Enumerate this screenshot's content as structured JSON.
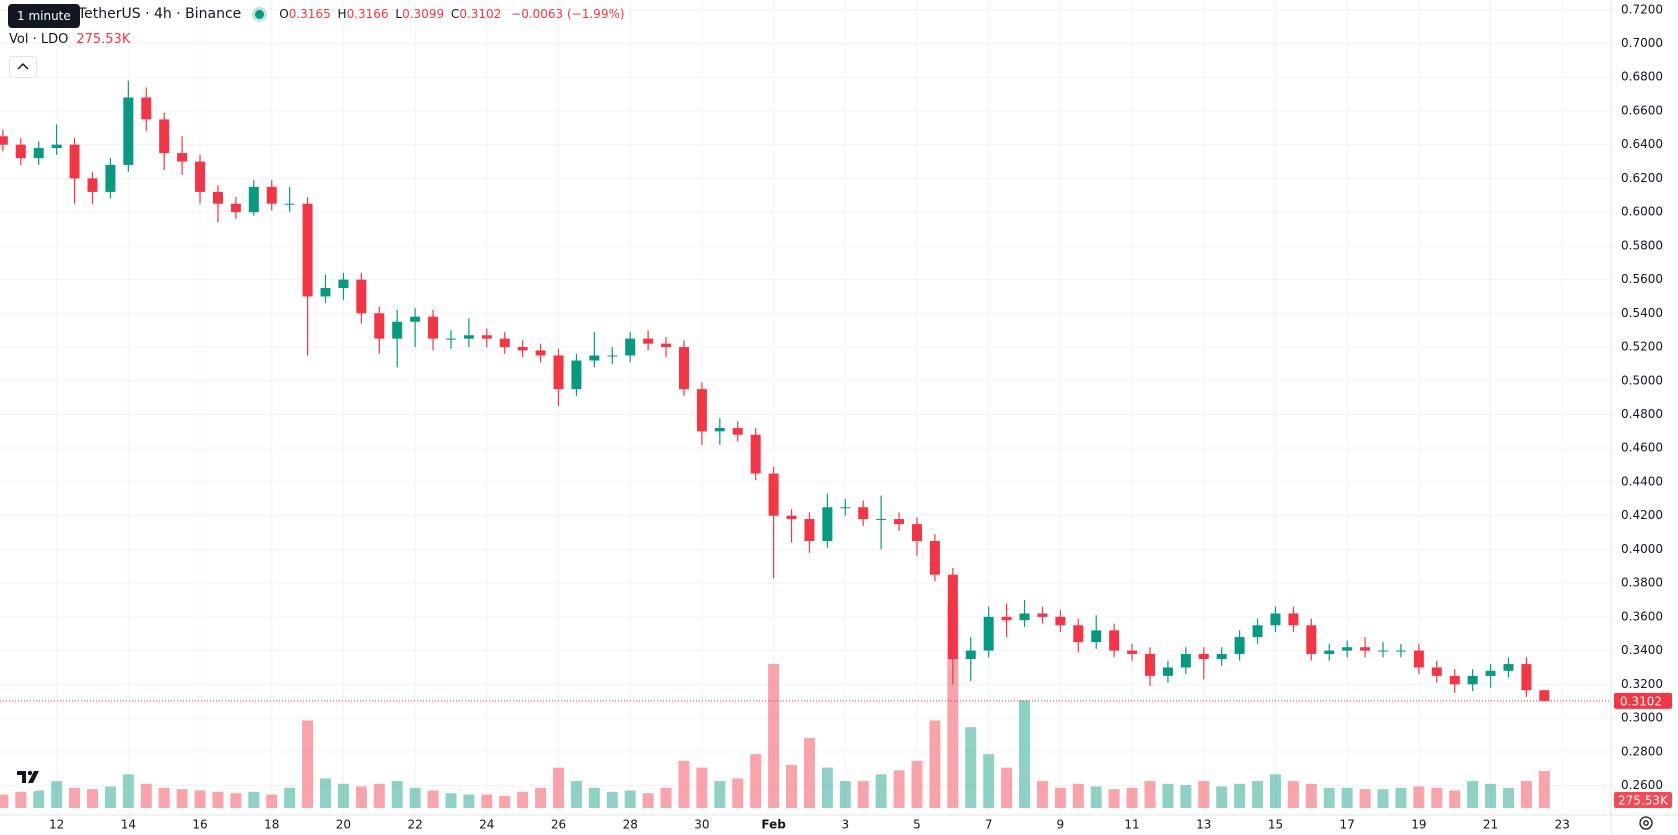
{
  "chart_data": {
    "type": "candlestick",
    "symbol": "TetherUS · 4h · Binance",
    "interval_tooltip": "1 minute",
    "ohlc_labels": [
      "O",
      "H",
      "L",
      "C"
    ],
    "change": "−0.0063 (−1.99%)",
    "volume_title": "Vol · LDO",
    "volume_label": "275.53K",
    "up_color": "#089981",
    "down_color": "#f23645",
    "grid": true,
    "x": [
      -1.5,
      -1,
      -0.5,
      0,
      0.5,
      1,
      1.5,
      2,
      2.5,
      3,
      3.5,
      4,
      4.5,
      5,
      5.5,
      6,
      6.5,
      7,
      7.5,
      8,
      8.5,
      9,
      9.5,
      10,
      10.5,
      11,
      11.5,
      12,
      12.5,
      13,
      13.5,
      14,
      14.5,
      15,
      15.5,
      16,
      16.5,
      17,
      17.5,
      18,
      18.5,
      19,
      19.5,
      20,
      20.5,
      21,
      21.5,
      22,
      22.5,
      23,
      23.5,
      24,
      24.5,
      25,
      25.5,
      26,
      26.5,
      27,
      27.5,
      28,
      28.5,
      29,
      29.5,
      30,
      30.5,
      31,
      31.5,
      32,
      32.5,
      33,
      33.5,
      34,
      34.5,
      35,
      35.5,
      36,
      36.5,
      37,
      37.5,
      38,
      38.5,
      39,
      39.5,
      40,
      40.5,
      41,
      41.5
    ],
    "open": [
      0.645,
      0.64,
      0.632,
      0.638,
      0.64,
      0.62,
      0.612,
      0.628,
      0.668,
      0.655,
      0.635,
      0.63,
      0.612,
      0.605,
      0.6,
      0.615,
      0.605,
      0.605,
      0.55,
      0.555,
      0.56,
      0.54,
      0.525,
      0.535,
      0.538,
      0.525,
      0.525,
      0.527,
      0.525,
      0.52,
      0.518,
      0.515,
      0.495,
      0.512,
      0.515,
      0.515,
      0.525,
      0.522,
      0.52,
      0.495,
      0.47,
      0.472,
      0.468,
      0.445,
      0.42,
      0.418,
      0.405,
      0.425,
      0.425,
      0.418,
      0.418,
      0.415,
      0.405,
      0.385,
      0.335,
      0.34,
      0.36,
      0.358,
      0.362,
      0.36,
      0.355,
      0.345,
      0.352,
      0.34,
      0.338,
      0.325,
      0.33,
      0.338,
      0.335,
      0.338,
      0.348,
      0.355,
      0.362,
      0.355,
      0.338,
      0.34,
      0.342,
      0.34,
      0.34,
      0.34,
      0.33,
      0.325,
      0.32,
      0.325,
      0.328,
      0.332,
      0.3165
    ],
    "high": [
      0.649,
      0.644,
      0.642,
      0.652,
      0.644,
      0.624,
      0.632,
      0.678,
      0.674,
      0.659,
      0.645,
      0.634,
      0.616,
      0.609,
      0.619,
      0.619,
      0.615,
      0.609,
      0.563,
      0.564,
      0.564,
      0.544,
      0.542,
      0.543,
      0.542,
      0.53,
      0.537,
      0.531,
      0.529,
      0.524,
      0.522,
      0.519,
      0.516,
      0.529,
      0.52,
      0.529,
      0.53,
      0.526,
      0.524,
      0.499,
      0.478,
      0.476,
      0.472,
      0.449,
      0.424,
      0.422,
      0.433,
      0.43,
      0.429,
      0.432,
      0.422,
      0.419,
      0.409,
      0.389,
      0.348,
      0.366,
      0.368,
      0.37,
      0.366,
      0.364,
      0.359,
      0.361,
      0.356,
      0.344,
      0.342,
      0.334,
      0.342,
      0.342,
      0.342,
      0.352,
      0.359,
      0.366,
      0.366,
      0.359,
      0.344,
      0.346,
      0.348,
      0.345,
      0.344,
      0.344,
      0.334,
      0.329,
      0.329,
      0.332,
      0.336,
      0.336,
      0.3166
    ],
    "low": [
      0.636,
      0.628,
      0.628,
      0.634,
      0.605,
      0.605,
      0.608,
      0.624,
      0.648,
      0.625,
      0.622,
      0.605,
      0.594,
      0.596,
      0.598,
      0.601,
      0.6,
      0.515,
      0.546,
      0.548,
      0.534,
      0.516,
      0.508,
      0.52,
      0.518,
      0.519,
      0.52,
      0.52,
      0.516,
      0.514,
      0.511,
      0.485,
      0.491,
      0.508,
      0.51,
      0.511,
      0.518,
      0.514,
      0.491,
      0.462,
      0.462,
      0.464,
      0.441,
      0.383,
      0.404,
      0.398,
      0.401,
      0.42,
      0.414,
      0.4,
      0.411,
      0.396,
      0.381,
      0.32,
      0.322,
      0.336,
      0.348,
      0.354,
      0.356,
      0.351,
      0.339,
      0.341,
      0.336,
      0.334,
      0.319,
      0.321,
      0.326,
      0.323,
      0.331,
      0.334,
      0.344,
      0.351,
      0.351,
      0.334,
      0.334,
      0.336,
      0.336,
      0.336,
      0.336,
      0.326,
      0.321,
      0.315,
      0.316,
      0.318,
      0.324,
      0.3125,
      0.3099
    ],
    "close": [
      0.64,
      0.632,
      0.638,
      0.64,
      0.62,
      0.612,
      0.628,
      0.668,
      0.655,
      0.635,
      0.63,
      0.612,
      0.605,
      0.6,
      0.615,
      0.605,
      0.605,
      0.55,
      0.555,
      0.56,
      0.54,
      0.525,
      0.535,
      0.538,
      0.525,
      0.525,
      0.527,
      0.525,
      0.52,
      0.518,
      0.515,
      0.495,
      0.512,
      0.515,
      0.515,
      0.525,
      0.522,
      0.52,
      0.495,
      0.47,
      0.472,
      0.468,
      0.445,
      0.42,
      0.418,
      0.405,
      0.425,
      0.425,
      0.418,
      0.418,
      0.415,
      0.405,
      0.385,
      0.335,
      0.34,
      0.36,
      0.358,
      0.362,
      0.36,
      0.355,
      0.345,
      0.352,
      0.34,
      0.338,
      0.325,
      0.33,
      0.338,
      0.335,
      0.338,
      0.348,
      0.355,
      0.362,
      0.355,
      0.338,
      0.34,
      0.342,
      0.34,
      0.34,
      0.34,
      0.33,
      0.325,
      0.32,
      0.325,
      0.328,
      0.332,
      0.3165,
      0.3102
    ],
    "volume": [
      100,
      120,
      130,
      200,
      150,
      140,
      160,
      250,
      180,
      150,
      140,
      130,
      120,
      110,
      120,
      100,
      150,
      650,
      220,
      180,
      160,
      180,
      200,
      150,
      130,
      110,
      100,
      100,
      90,
      120,
      150,
      300,
      200,
      150,
      120,
      130,
      110,
      150,
      350,
      300,
      200,
      220,
      400,
      1070,
      320,
      520,
      300,
      200,
      200,
      250,
      280,
      350,
      650,
      1500,
      600,
      400,
      300,
      800,
      200,
      150,
      180,
      160,
      140,
      150,
      200,
      180,
      170,
      200,
      160,
      180,
      200,
      250,
      200,
      180,
      150,
      150,
      140,
      140,
      150,
      160,
      150,
      130,
      200,
      180,
      150,
      200,
      275.53
    ],
    "xlim": [
      -1.58,
      43.36
    ],
    "ylim": [
      0.2425,
      0.7258
    ],
    "vlim": [
      0,
      6000
    ],
    "xticks": [
      {
        "value": 0,
        "label": "12"
      },
      {
        "value": 2,
        "label": "14"
      },
      {
        "value": 4,
        "label": "16"
      },
      {
        "value": 6,
        "label": "18"
      },
      {
        "value": 8,
        "label": "20"
      },
      {
        "value": 10,
        "label": "22"
      },
      {
        "value": 12,
        "label": "24"
      },
      {
        "value": 14,
        "label": "26"
      },
      {
        "value": 16,
        "label": "28"
      },
      {
        "value": 18,
        "label": "30"
      },
      {
        "value": 20,
        "label": "Feb"
      },
      {
        "value": 22,
        "label": "3"
      },
      {
        "value": 24,
        "label": "5"
      },
      {
        "value": 26,
        "label": "7"
      },
      {
        "value": 28,
        "label": "9"
      },
      {
        "value": 30,
        "label": "11"
      },
      {
        "value": 32,
        "label": "13"
      },
      {
        "value": 34,
        "label": "15"
      },
      {
        "value": 36,
        "label": "17"
      },
      {
        "value": 38,
        "label": "19"
      },
      {
        "value": 40,
        "label": "21"
      },
      {
        "value": 42,
        "label": "23"
      }
    ],
    "yticks": [
      {
        "value": 0.26,
        "label": "0.2600"
      },
      {
        "value": 0.28,
        "label": "0.2800"
      },
      {
        "value": 0.3,
        "label": "0.3000"
      },
      {
        "value": 0.32,
        "label": "0.3200"
      },
      {
        "value": 0.34,
        "label": "0.3400"
      },
      {
        "value": 0.36,
        "label": "0.3600"
      },
      {
        "value": 0.38,
        "label": "0.3800"
      },
      {
        "value": 0.4,
        "label": "0.4000"
      },
      {
        "value": 0.42,
        "label": "0.4200"
      },
      {
        "value": 0.44,
        "label": "0.4400"
      },
      {
        "value": 0.46,
        "label": "0.4600"
      },
      {
        "value": 0.48,
        "label": "0.4800"
      },
      {
        "value": 0.5,
        "label": "0.5000"
      },
      {
        "value": 0.52,
        "label": "0.5200"
      },
      {
        "value": 0.54,
        "label": "0.5400"
      },
      {
        "value": 0.56,
        "label": "0.5600"
      },
      {
        "value": 0.58,
        "label": "0.5800"
      },
      {
        "value": 0.6,
        "label": "0.6000"
      },
      {
        "value": 0.62,
        "label": "0.6200"
      },
      {
        "value": 0.64,
        "label": "0.6400"
      },
      {
        "value": 0.66,
        "label": "0.6600"
      },
      {
        "value": 0.68,
        "label": "0.6800"
      },
      {
        "value": 0.7,
        "label": "0.7000"
      },
      {
        "value": 0.72,
        "label": "0.7200"
      }
    ]
  }
}
